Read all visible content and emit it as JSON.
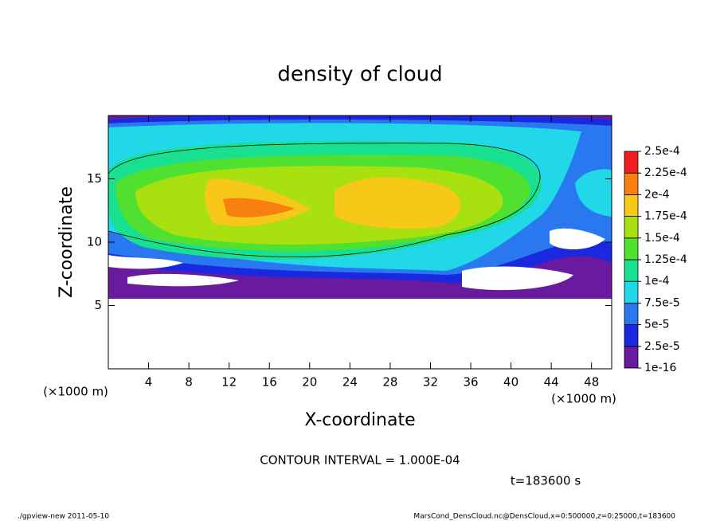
{
  "chart_data": {
    "type": "contour",
    "title": "density of cloud",
    "x_label": "X-coordinate",
    "y_label": "Z-coordinate",
    "x_unit_left": "(×1000 m)",
    "x_unit_right": "(×1000 m)",
    "xlim": [
      0,
      50
    ],
    "xticks": [
      4,
      8,
      12,
      16,
      20,
      24,
      28,
      32,
      36,
      40,
      44,
      48
    ],
    "ylim": [
      0,
      20
    ],
    "yticks": [
      5,
      10,
      15
    ],
    "colorbar": {
      "ticks": [
        {
          "value": 1e-16,
          "label": "1e-16"
        },
        {
          "value": 2.5e-05,
          "label": "2.5e-5"
        },
        {
          "value": 5e-05,
          "label": "5e-5"
        },
        {
          "value": 7.5e-05,
          "label": "7.5e-5"
        },
        {
          "value": 0.0001,
          "label": "1e-4"
        },
        {
          "value": 0.000125,
          "label": "1.25e-4"
        },
        {
          "value": 0.00015,
          "label": "1.5e-4"
        },
        {
          "value": 0.000175,
          "label": "1.75e-4"
        },
        {
          "value": 0.0002,
          "label": "2e-4"
        },
        {
          "value": 0.000225,
          "label": "2.25e-4"
        },
        {
          "value": 0.00025,
          "label": "2.5e-4"
        }
      ],
      "colors": [
        "#6a1a9e",
        "#1a28e0",
        "#2a78f0",
        "#20d8e8",
        "#18e090",
        "#50e030",
        "#a8e010",
        "#f8c818",
        "#f88010",
        "#f02020"
      ]
    },
    "contour_interval": "CONTOUR INTERVAL = 1.000E-04",
    "time_label": "t=183600 s",
    "footer_left": "./gpview-new   2011-05-10",
    "footer_right": "MarsCond_DensCloud.nc@DensCloud,x=0:500000,z=0:25000,t=183600"
  }
}
